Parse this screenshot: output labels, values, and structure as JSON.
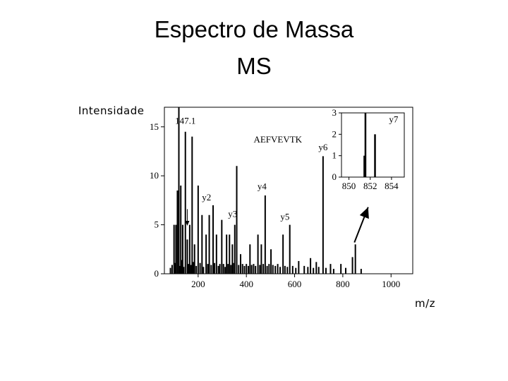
{
  "slide": {
    "title": "Espectro de Massa",
    "subtitle": "MS",
    "y_label": "Intensidade",
    "x_label": "m/z"
  },
  "chart_data": [
    {
      "type": "bar",
      "title": "",
      "xlabel": "",
      "ylabel": "",
      "xlim": [
        60,
        1090
      ],
      "ylim": [
        0,
        17
      ],
      "xticks": [
        200,
        400,
        600,
        800,
        1000
      ],
      "yticks": [
        0,
        5,
        10,
        15
      ],
      "sequence_label": "AEFVEVTK",
      "annotations": [
        {
          "text": "147.1",
          "x": 147,
          "y": 15.3
        },
        {
          "text": "y2",
          "x": 235,
          "y": 7.5
        },
        {
          "text": "y3",
          "x": 343,
          "y": 5.8
        },
        {
          "text": "y4",
          "x": 465,
          "y": 8.6
        },
        {
          "text": "y5",
          "x": 560,
          "y": 5.5
        },
        {
          "text": "y6",
          "x": 718,
          "y": 12.6
        }
      ],
      "peaks": [
        {
          "x": 100,
          "y": 5.0
        },
        {
          "x": 108,
          "y": 5.0
        },
        {
          "x": 114,
          "y": 8.5
        },
        {
          "x": 120,
          "y": 17.0
        },
        {
          "x": 128,
          "y": 9.0
        },
        {
          "x": 136,
          "y": 5.0
        },
        {
          "x": 147,
          "y": 14.5
        },
        {
          "x": 155,
          "y": 3.5
        },
        {
          "x": 165,
          "y": 5.0
        },
        {
          "x": 175,
          "y": 14.0
        },
        {
          "x": 185,
          "y": 3.0
        },
        {
          "x": 200,
          "y": 9.0
        },
        {
          "x": 216,
          "y": 6.0
        },
        {
          "x": 233,
          "y": 4.0
        },
        {
          "x": 246,
          "y": 6.0
        },
        {
          "x": 262,
          "y": 7.0
        },
        {
          "x": 276,
          "y": 4.0
        },
        {
          "x": 298,
          "y": 5.5
        },
        {
          "x": 318,
          "y": 4.0
        },
        {
          "x": 330,
          "y": 4.0
        },
        {
          "x": 342,
          "y": 3.0
        },
        {
          "x": 352,
          "y": 5.0
        },
        {
          "x": 360,
          "y": 11.0
        },
        {
          "x": 376,
          "y": 2.0
        },
        {
          "x": 415,
          "y": 3.0
        },
        {
          "x": 448,
          "y": 4.0
        },
        {
          "x": 462,
          "y": 3.0
        },
        {
          "x": 478,
          "y": 8.0
        },
        {
          "x": 502,
          "y": 2.5
        },
        {
          "x": 552,
          "y": 4.0
        },
        {
          "x": 580,
          "y": 5.0
        },
        {
          "x": 617,
          "y": 1.3
        },
        {
          "x": 666,
          "y": 1.6
        },
        {
          "x": 690,
          "y": 1.2
        },
        {
          "x": 718,
          "y": 12.0
        },
        {
          "x": 749,
          "y": 1.0
        },
        {
          "x": 792,
          "y": 1.0
        },
        {
          "x": 840,
          "y": 1.7
        },
        {
          "x": 852,
          "y": 3.0
        }
      ],
      "noise_peaks": [
        {
          "x": 85,
          "y": 0.6
        },
        {
          "x": 92,
          "y": 0.9
        },
        {
          "x": 104,
          "y": 1.1
        },
        {
          "x": 124,
          "y": 0.8
        },
        {
          "x": 132,
          "y": 1.4
        },
        {
          "x": 140,
          "y": 0.7
        },
        {
          "x": 160,
          "y": 1.0
        },
        {
          "x": 170,
          "y": 0.9
        },
        {
          "x": 180,
          "y": 1.2
        },
        {
          "x": 192,
          "y": 0.8
        },
        {
          "x": 208,
          "y": 1.1
        },
        {
          "x": 222,
          "y": 0.7
        },
        {
          "x": 240,
          "y": 1.0
        },
        {
          "x": 254,
          "y": 0.9
        },
        {
          "x": 268,
          "y": 1.1
        },
        {
          "x": 284,
          "y": 0.8
        },
        {
          "x": 290,
          "y": 1.0
        },
        {
          "x": 305,
          "y": 1.0
        },
        {
          "x": 312,
          "y": 0.7
        },
        {
          "x": 324,
          "y": 1.0
        },
        {
          "x": 336,
          "y": 0.9
        },
        {
          "x": 346,
          "y": 1.1
        },
        {
          "x": 368,
          "y": 0.9
        },
        {
          "x": 384,
          "y": 1.0
        },
        {
          "x": 392,
          "y": 0.8
        },
        {
          "x": 400,
          "y": 1.0
        },
        {
          "x": 408,
          "y": 0.8
        },
        {
          "x": 422,
          "y": 0.9
        },
        {
          "x": 430,
          "y": 1.0
        },
        {
          "x": 438,
          "y": 0.8
        },
        {
          "x": 456,
          "y": 0.9
        },
        {
          "x": 470,
          "y": 1.0
        },
        {
          "x": 486,
          "y": 0.8
        },
        {
          "x": 494,
          "y": 1.0
        },
        {
          "x": 510,
          "y": 0.9
        },
        {
          "x": 520,
          "y": 0.8
        },
        {
          "x": 530,
          "y": 1.0
        },
        {
          "x": 540,
          "y": 0.7
        },
        {
          "x": 560,
          "y": 0.8
        },
        {
          "x": 570,
          "y": 0.7
        },
        {
          "x": 592,
          "y": 0.8
        },
        {
          "x": 605,
          "y": 0.6
        },
        {
          "x": 640,
          "y": 0.8
        },
        {
          "x": 655,
          "y": 0.7
        },
        {
          "x": 678,
          "y": 0.6
        },
        {
          "x": 700,
          "y": 0.7
        },
        {
          "x": 730,
          "y": 0.6
        },
        {
          "x": 762,
          "y": 0.5
        },
        {
          "x": 812,
          "y": 0.6
        },
        {
          "x": 876,
          "y": 0.5
        }
      ]
    },
    {
      "type": "bar",
      "title": "",
      "xlabel": "",
      "ylabel": "",
      "xlim": [
        849.3,
        855.2
      ],
      "ylim": [
        0,
        3
      ],
      "xticks": [
        850,
        852,
        854
      ],
      "yticks": [
        0,
        1,
        2,
        3
      ],
      "annotations": [
        {
          "text": "y7",
          "x": 854.2,
          "y": 2.55
        }
      ],
      "peaks": [
        {
          "x": 851.45,
          "y": 1.0
        },
        {
          "x": 851.55,
          "y": 3.0
        },
        {
          "x": 852.45,
          "y": 2.0
        }
      ]
    }
  ]
}
